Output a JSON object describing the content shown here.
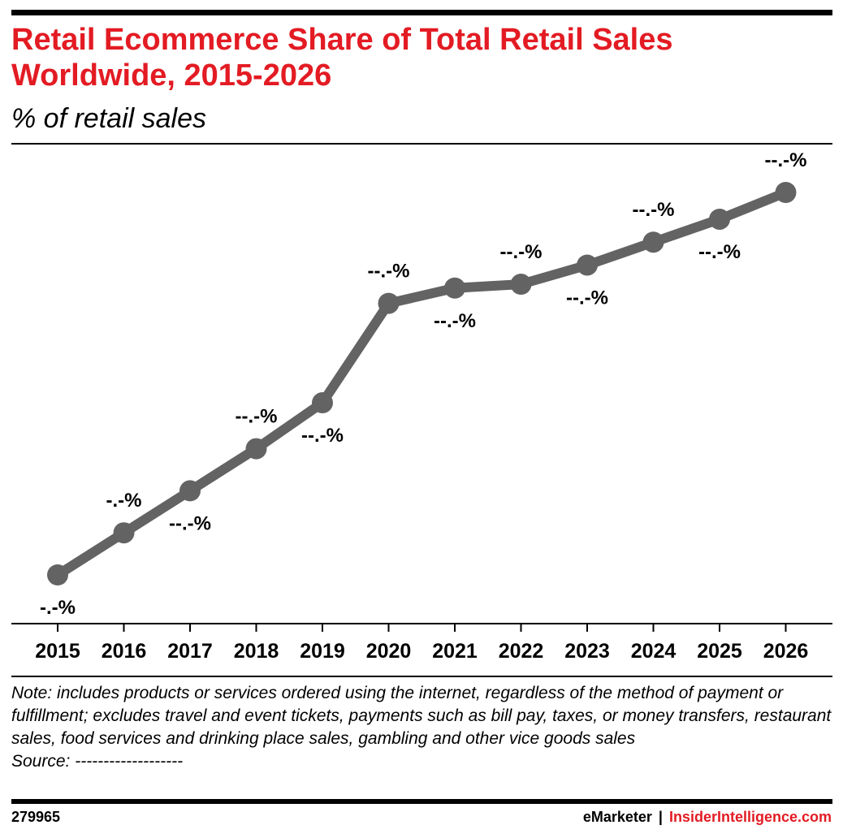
{
  "chart_data": {
    "type": "line",
    "title": "Retail Ecommerce Share of Total Retail Sales Worldwide, 2015-2026",
    "subtitle": "% of retail sales",
    "x": [
      "2015",
      "2016",
      "2017",
      "2018",
      "2019",
      "2020",
      "2021",
      "2022",
      "2023",
      "2024",
      "2025",
      "2026"
    ],
    "series": [
      {
        "values": [
          7.5,
          8.6,
          9.7,
          10.8,
          12.0,
          14.6,
          15.0,
          15.1,
          15.6,
          16.2,
          16.8,
          17.5
        ],
        "labels": [
          "-.-%",
          "-.-%",
          "--.-%",
          "--.-%",
          "--.-%",
          "--.-%",
          "--.-%",
          "--.-%",
          "--.-%",
          "--.-%",
          "--.-%",
          "--.-%"
        ]
      }
    ],
    "color": "#636363",
    "grid": false,
    "legend": "none"
  },
  "note": "Note: includes products or services ordered using the internet, regardless of the method of payment or fulfillment; excludes travel and event tickets, payments such as bill pay, taxes, or money transfers, restaurant sales, food services and drinking place sales, gambling and other vice goods sales",
  "source": "Source: -------------------",
  "footer": {
    "chart_id": "279965",
    "brand_left": "eMarketer",
    "separator": "|",
    "brand_right": "InsiderIntelligence.com"
  },
  "colors": {
    "title": "#e31b23",
    "line": "#636363",
    "brand": "#e31b23"
  }
}
